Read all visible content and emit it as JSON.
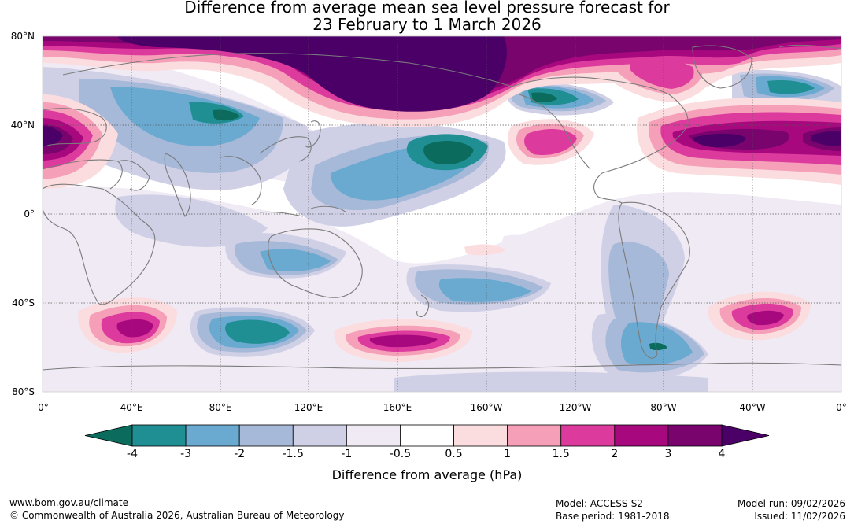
{
  "title_line1": "Difference from average mean sea level pressure forecast for",
  "title_line2": "23 February to 1 March 2026",
  "lat_labels": [
    "80°N",
    "40°N",
    "0°",
    "40°S",
    "80°S"
  ],
  "lat_values": [
    80,
    40,
    0,
    -40,
    -80
  ],
  "lon_labels": [
    "0°",
    "40°E",
    "80°E",
    "120°E",
    "160°E",
    "160°W",
    "120°W",
    "80°W",
    "40°W",
    "0°"
  ],
  "lon_values": [
    0,
    40,
    80,
    120,
    160,
    200,
    240,
    280,
    320,
    360
  ],
  "colorbar": {
    "ticks": [
      "-4",
      "-3",
      "-2",
      "-1.5",
      "-1",
      "-0.5",
      "0.5",
      "1",
      "1.5",
      "2",
      "3",
      "4"
    ],
    "colors": [
      "#0b6b5c",
      "#208f94",
      "#6aa9d0",
      "#a7b9d8",
      "#cfd0e6",
      "#f0eaf4",
      "#ffffff",
      "#fbdddf",
      "#f59fb8",
      "#dc3a9d",
      "#a8087e",
      "#7a046e",
      "#4b0068"
    ],
    "label": "Difference from average (hPa)"
  },
  "footer": {
    "website": "www.bom.gov.au/climate",
    "copyright": "© Commonwealth of Australia 2026, Australian Bureau of Meteorology",
    "model": "Model: ACCESS-S2",
    "base_period": "Base period: 1981-2018",
    "model_run": "Model run: 09/02/2026",
    "issued": "Issued: 11/02/2026"
  },
  "anomaly_features": [
    {
      "lon": 165,
      "lat": 62,
      "level": 4
    },
    {
      "lon": 125,
      "lat": 68,
      "level": 4
    },
    {
      "lon": 200,
      "lat": 60,
      "level": 3
    },
    {
      "lon": 10,
      "lat": 38,
      "level": 3
    },
    {
      "lon": 300,
      "lat": 33,
      "level": 3
    },
    {
      "lon": 350,
      "lat": 36,
      "level": 3
    },
    {
      "lon": 237,
      "lat": 34,
      "level": 1.5
    },
    {
      "lon": 268,
      "lat": 58,
      "level": 1.5
    },
    {
      "lon": 195,
      "lat": 29,
      "level": -4
    },
    {
      "lon": 80,
      "lat": 44,
      "level": -3
    },
    {
      "lon": 225,
      "lat": 55,
      "level": -3
    },
    {
      "lon": 323,
      "lat": 58,
      "level": -3
    },
    {
      "lon": 155,
      "lat": 15,
      "level": -2
    },
    {
      "lon": 110,
      "lat": -20,
      "level": -2
    },
    {
      "lon": 225,
      "lat": -35,
      "level": -2
    },
    {
      "lon": 97,
      "lat": -53,
      "level": -3
    },
    {
      "lon": 277,
      "lat": -58,
      "level": -2
    },
    {
      "lon": 42,
      "lat": -51,
      "level": 2
    },
    {
      "lon": 165,
      "lat": -56,
      "level": 1.5
    },
    {
      "lon": 327,
      "lat": -45,
      "level": 1.5
    }
  ]
}
